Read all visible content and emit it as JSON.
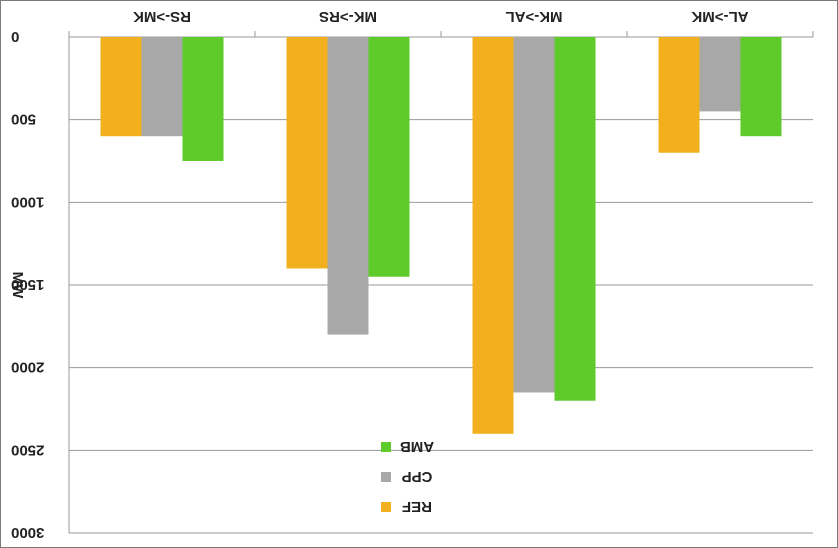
{
  "chart_data": {
    "type": "bar",
    "orientation": "vertical",
    "y_axis_inverted": true,
    "x_axis_position": "top",
    "categories": [
      "RS->MK",
      "MK->RS",
      "MK->AL",
      "AL->MK"
    ],
    "series": [
      {
        "name": "REF",
        "color": "#f2b01e",
        "values": [
          600,
          1400,
          2400,
          700
        ]
      },
      {
        "name": "CPP",
        "color": "#a8a8a8",
        "values": [
          600,
          1800,
          2150,
          450
        ]
      },
      {
        "name": "AMB",
        "color": "#5ecb2b",
        "values": [
          750,
          1450,
          2200,
          600
        ]
      }
    ],
    "ylabel": "MW",
    "ylim": [
      0,
      3000
    ],
    "yticks": [
      0,
      500,
      1000,
      1500,
      2000,
      2500,
      3000
    ],
    "ytick_labels": [
      "0",
      "500",
      "1000",
      "1500",
      "2000",
      "2500",
      "3000"
    ],
    "grid": true,
    "legend": {
      "placement": "bottom-center",
      "order": [
        "AMB",
        "CPP",
        "REF"
      ]
    }
  }
}
